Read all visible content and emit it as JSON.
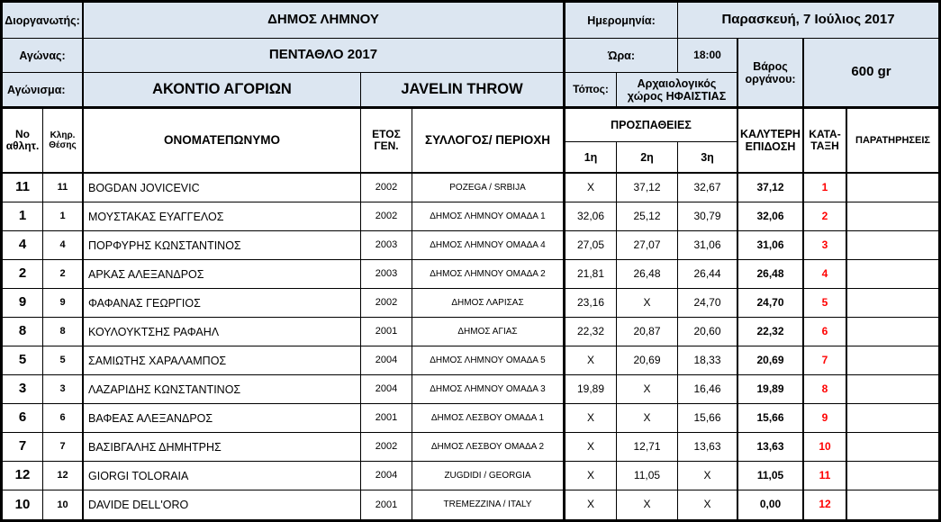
{
  "meta": {
    "organizer_label": "Διοργανωτής:",
    "organizer": "ΔΗΜΟΣ ΛΗΜΝΟΥ",
    "competition_label": "Αγώνας:",
    "competition": "ΠΕΝΤΑΘΛΟ 2017",
    "event_label": "Αγώνισμα:",
    "event_gr": "ΑΚΟΝΤΙΟ ΑΓΟΡΙΩΝ",
    "event_en": "JAVELIN THROW",
    "date_label": "Ημερομηνία:",
    "date": "Παρασκευή, 7 Ιούλιος 2017",
    "time_label": "Ώρα:",
    "time": "18:00",
    "venue_label": "Τόπος:",
    "venue": "Αρχαιολογικός χώρος ΗΦΑΙΣΤΙΑΣ",
    "implement_weight_label": "Βάρος οργάνου:",
    "implement_weight": "600 gr"
  },
  "table": {
    "headers": {
      "no": "Νο αθλητ.",
      "draw": "Κληρ. Θέσης",
      "name": "ΟΝΟΜΑΤΕΠΩΝΥΜΟ",
      "year": "ΕΤΟΣ ΓΕΝ.",
      "club": "ΣΥΛΛΟΓΟΣ/ ΠΕΡΙΟΧΗ",
      "attempts": "ΠΡΟΣΠΑΘΕΙΕΣ",
      "attempt1": "1η",
      "attempt2": "2η",
      "attempt3": "3η",
      "best": "ΚΑΛΥΤΕΡΗ ΕΠΙΔΟΣΗ",
      "rank": "ΚΑΤΑ-ΤΑΞΗ",
      "notes": "ΠΑΡΑΤΗΡΗΣΕΙΣ"
    },
    "rows": [
      {
        "no": "11",
        "draw": "11",
        "name": "BOGDAN JOVICEVIC",
        "year": "2002",
        "club": "POZEGA / SRBIJA",
        "a1": "X",
        "a2": "37,12",
        "a3": "32,67",
        "best": "37,12",
        "rank": "1",
        "notes": ""
      },
      {
        "no": "1",
        "draw": "1",
        "name": "ΜΟΥΣΤΑΚΑΣ ΕΥΑΓΓΕΛΟΣ",
        "year": "2002",
        "club": "ΔΗΜΟΣ ΛΗΜΝΟΥ ΟΜΑΔΑ 1",
        "a1": "32,06",
        "a2": "25,12",
        "a3": "30,79",
        "best": "32,06",
        "rank": "2",
        "notes": ""
      },
      {
        "no": "4",
        "draw": "4",
        "name": "ΠΟΡΦΥΡΗΣ ΚΩΝΣΤΑΝΤΙΝΟΣ",
        "year": "2003",
        "club": "ΔΗΜΟΣ ΛΗΜΝΟΥ ΟΜΑΔΑ 4",
        "a1": "27,05",
        "a2": "27,07",
        "a3": "31,06",
        "best": "31,06",
        "rank": "3",
        "notes": ""
      },
      {
        "no": "2",
        "draw": "2",
        "name": "ΑΡΚΑΣ ΑΛΕΞΑΝΔΡΟΣ",
        "year": "2003",
        "club": "ΔΗΜΟΣ ΛΗΜΝΟΥ ΟΜΑΔΑ 2",
        "a1": "21,81",
        "a2": "26,48",
        "a3": "26,44",
        "best": "26,48",
        "rank": "4",
        "notes": ""
      },
      {
        "no": "9",
        "draw": "9",
        "name": "ΦΑΦΑΝΑΣ ΓΕΩΡΓΙΟΣ",
        "year": "2002",
        "club": "ΔΗΜΟΣ ΛΑΡΙΣΑΣ",
        "a1": "23,16",
        "a2": "X",
        "a3": "24,70",
        "best": "24,70",
        "rank": "5",
        "notes": ""
      },
      {
        "no": "8",
        "draw": "8",
        "name": "ΚΟΥΛΟΥΚΤΣΗΣ ΡΑΦΑΗΛ",
        "year": "2001",
        "club": "ΔΗΜΟΣ ΑΓΙΑΣ",
        "a1": "22,32",
        "a2": "20,87",
        "a3": "20,60",
        "best": "22,32",
        "rank": "6",
        "notes": ""
      },
      {
        "no": "5",
        "draw": "5",
        "name": "ΣΑΜΙΩΤΗΣ ΧΑΡΑΛΑΜΠΟΣ",
        "year": "2004",
        "club": "ΔΗΜΟΣ ΛΗΜΝΟΥ ΟΜΑΔΑ 5",
        "a1": "X",
        "a2": "20,69",
        "a3": "18,33",
        "best": "20,69",
        "rank": "7",
        "notes": ""
      },
      {
        "no": "3",
        "draw": "3",
        "name": "ΛΑΖΑΡΙΔΗΣ ΚΩΝΣΤΑΝΤΙΝΟΣ",
        "year": "2004",
        "club": "ΔΗΜΟΣ ΛΗΜΝΟΥ ΟΜΑΔΑ 3",
        "a1": "19,89",
        "a2": "X",
        "a3": "16,46",
        "best": "19,89",
        "rank": "8",
        "notes": ""
      },
      {
        "no": "6",
        "draw": "6",
        "name": "ΒΑΦΕΑΣ ΑΛΕΞΑΝΔΡΟΣ",
        "year": "2001",
        "club": "ΔΗΜΟΣ ΛΕΣΒΟΥ ΟΜΑΔΑ 1",
        "a1": "X",
        "a2": "X",
        "a3": "15,66",
        "best": "15,66",
        "rank": "9",
        "notes": ""
      },
      {
        "no": "7",
        "draw": "7",
        "name": "ΒΑΣΙΒΓΑΛΗΣ ΔΗΜΗΤΡΗΣ",
        "year": "2002",
        "club": "ΔΗΜΟΣ ΛΕΣΒΟΥ ΟΜΑΔΑ 2",
        "a1": "X",
        "a2": "12,71",
        "a3": "13,63",
        "best": "13,63",
        "rank": "10",
        "notes": ""
      },
      {
        "no": "12",
        "draw": "12",
        "name": "GIORGI TOLORAIA",
        "year": "2004",
        "club": "ZUGDIDI / GEORGIA",
        "a1": "X",
        "a2": "11,05",
        "a3": "X",
        "best": "11,05",
        "rank": "11",
        "notes": ""
      },
      {
        "no": "10",
        "draw": "10",
        "name": "DAVIDE DELL'ORO",
        "year": "2001",
        "club": "TREMEZZINA / ITALY",
        "a1": "X",
        "a2": "X",
        "a3": "X",
        "best": "0,00",
        "rank": "12",
        "notes": ""
      }
    ]
  },
  "colors": {
    "info_fill": "#dce6f1",
    "rank_color": "#ff0000",
    "border": "#000000",
    "text": "#000000",
    "background": "#ffffff"
  }
}
